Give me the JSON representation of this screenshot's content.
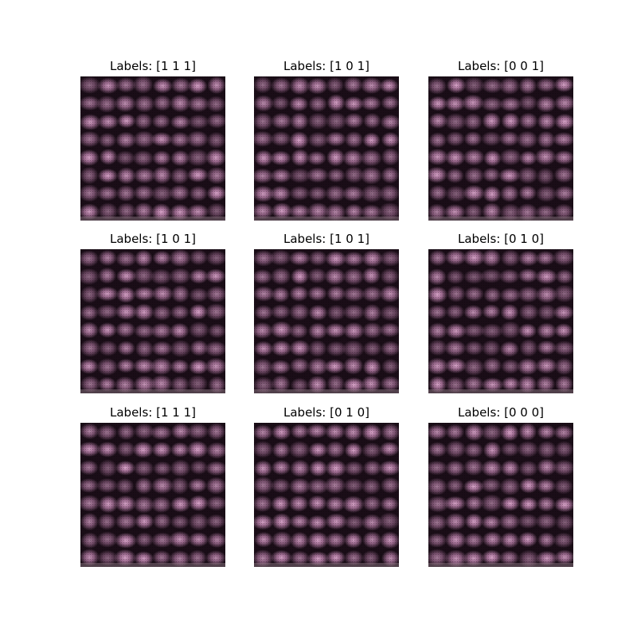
{
  "figure": {
    "panels": [
      {
        "title": "Labels: [1 1 1]"
      },
      {
        "title": "Labels: [1 0 1]"
      },
      {
        "title": "Labels: [0 0 1]"
      },
      {
        "title": "Labels: [1 0 1]"
      },
      {
        "title": "Labels: [1 0 1]"
      },
      {
        "title": "Labels: [0 1 0]"
      },
      {
        "title": "Labels: [1 1 1]"
      },
      {
        "title": "Labels: [0 1 0]"
      },
      {
        "title": "Labels: [0 0 0]"
      }
    ],
    "colors": {
      "background": "#ffffff",
      "dark": "#1a0d17",
      "pink": "#c98ab8",
      "highlight": "#e6b0d6"
    }
  }
}
